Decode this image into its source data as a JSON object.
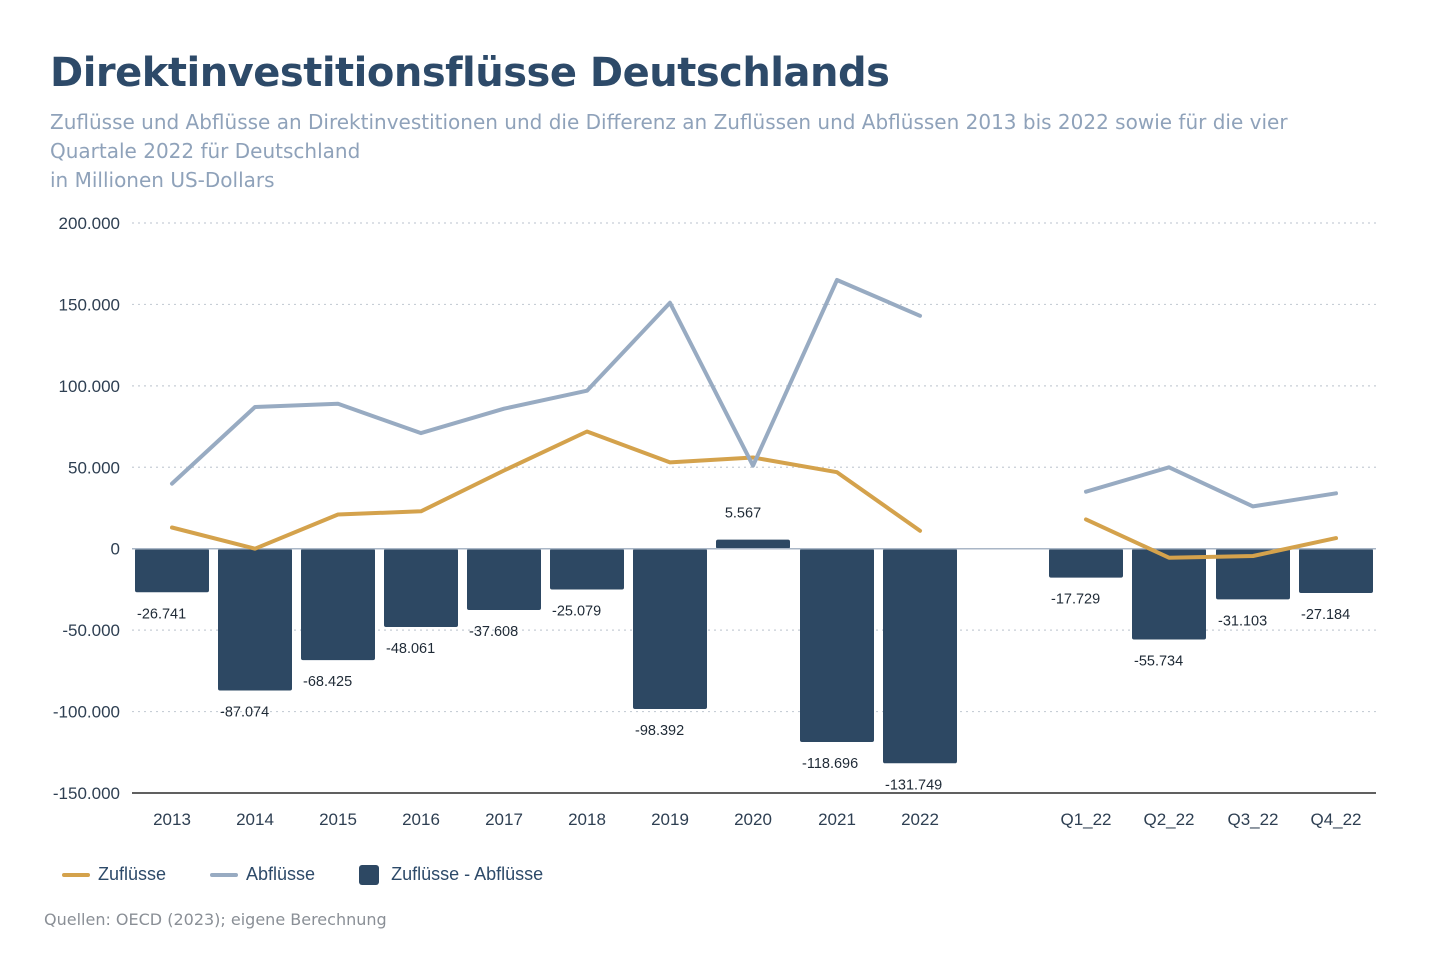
{
  "header": {
    "title": "Direktinvestitionsflüsse Deutschlands",
    "subtitle_lines": [
      "Zuflüsse und Abflüsse an Direktinvestitionen und die Differenz an Zuflüssen und Abflüssen 2013 bis 2022 sowie für die vier",
      "Quartale 2022 für Deutschland",
      "in Millionen US-Dollars"
    ]
  },
  "footer": {
    "source": "Quellen: OECD (2023); eigene Berechnung"
  },
  "chart_data": {
    "type": "bar",
    "categories": [
      "2013",
      "2014",
      "2015",
      "2016",
      "2017",
      "2018",
      "2019",
      "2020",
      "2021",
      "2022",
      "Q1_22",
      "Q2_22",
      "Q3_22",
      "Q4_22"
    ],
    "ylim": [
      -150000,
      200000
    ],
    "y_ticks": [
      200000,
      150000,
      100000,
      50000,
      0,
      -50000,
      -100000,
      -150000
    ],
    "y_tick_labels": [
      "200.000",
      "150.000",
      "100.000",
      "50.000",
      "0",
      "-50.000",
      "-100.000",
      "-150.000"
    ],
    "grid": true,
    "legend_position": "bottom-left",
    "series": [
      {
        "name": "Zuflüsse",
        "type": "line",
        "color": "#d4a24c",
        "groups": [
          [
            13000,
            0,
            21000,
            23000,
            48000,
            72000,
            53000,
            56000,
            47000,
            11000
          ],
          [
            18000,
            -5500,
            -4500,
            6500
          ]
        ]
      },
      {
        "name": "Abflüsse",
        "type": "line",
        "color": "#98abc2",
        "groups": [
          [
            40000,
            87000,
            89000,
            71000,
            86000,
            97000,
            151000,
            51000,
            165000,
            143000
          ],
          [
            35000,
            50000,
            26000,
            34000
          ]
        ]
      },
      {
        "name": "Zuflüsse - Abflüsse",
        "type": "bar",
        "color": "#2d4863",
        "values": [
          -26741,
          -87074,
          -68425,
          -48061,
          -37608,
          -25079,
          -98392,
          5567,
          -118696,
          -131749,
          -17729,
          -55734,
          -31103,
          -27184
        ],
        "labels": [
          "-26.741",
          "-87.074",
          "-68.425",
          "-48.061",
          "-37.608",
          "-25.079",
          "-98.392",
          "5.567",
          "-118.696",
          "-131.749",
          "-17.729",
          "-55.734",
          "-31.103",
          "-27.184"
        ]
      }
    ]
  }
}
